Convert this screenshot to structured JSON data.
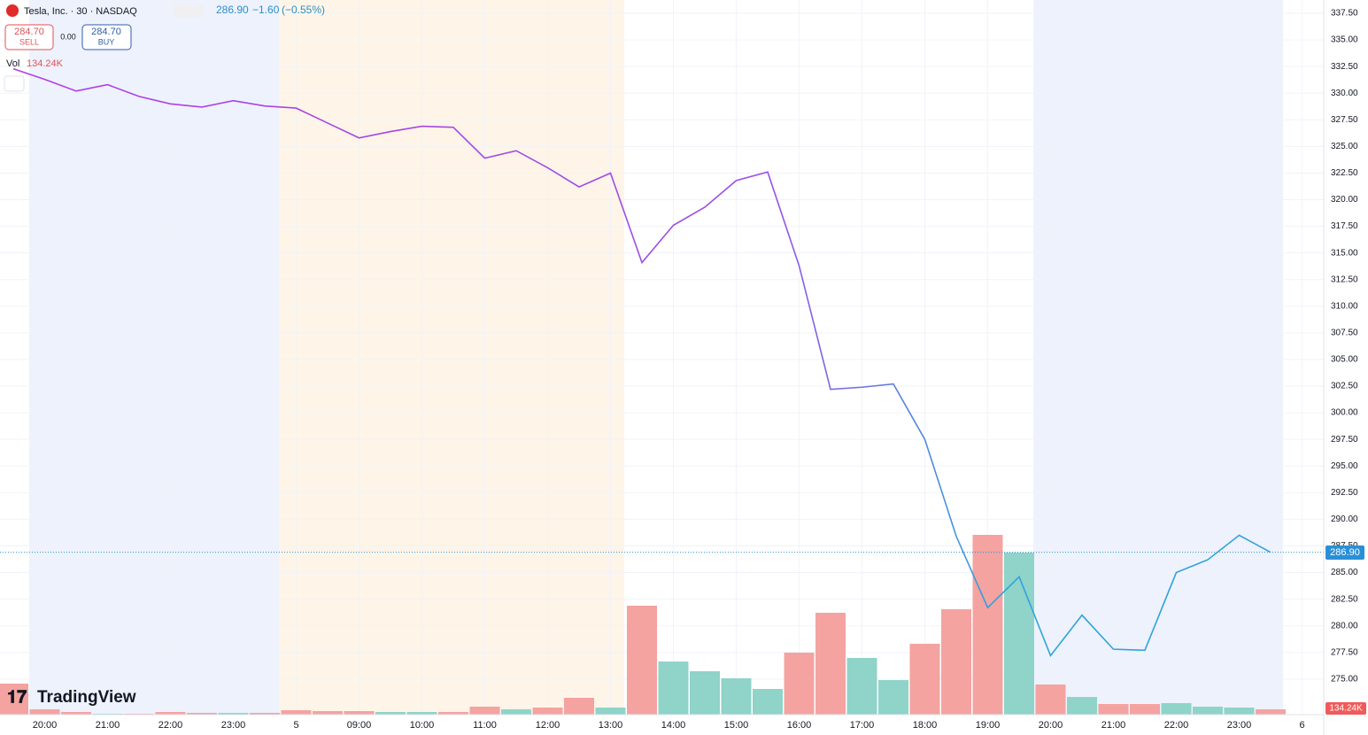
{
  "header": {
    "symbol": "Tesla, Inc. · 30 · NASDAQ",
    "last": "286.90",
    "change": "−1.60",
    "change_pct": "(−0.55%)",
    "sell_price": "284.70",
    "sell_label": "SELL",
    "spread": "0.00",
    "buy_price": "284.70",
    "buy_label": "BUY",
    "vol_label": "Vol",
    "vol_value": "134.24K",
    "brand": "TradingView"
  },
  "chart_data": {
    "type": "line",
    "categories": [
      null,
      "20:00",
      null,
      "21:00",
      null,
      "22:00",
      null,
      "23:00",
      null,
      "5",
      null,
      "09:00",
      null,
      "10:00",
      null,
      "11:00",
      null,
      "12:00",
      null,
      "13:00",
      null,
      "14:00",
      null,
      "15:00",
      null,
      "16:00",
      null,
      "17:00",
      null,
      "18:00",
      null,
      "19:00",
      null,
      "20:00",
      null,
      "21:00",
      null,
      "22:00",
      null,
      "23:00",
      null,
      "6"
    ],
    "values": [
      332.3,
      331.3,
      330.2,
      330.8,
      329.7,
      329.0,
      328.7,
      329.3,
      328.8,
      328.6,
      327.2,
      325.8,
      326.4,
      326.9,
      326.8,
      323.9,
      324.6,
      323.0,
      321.2,
      322.5,
      314.1,
      317.6,
      319.3,
      321.8,
      322.6,
      313.8,
      302.2,
      302.4,
      302.7,
      297.5,
      288.4,
      281.7,
      284.6,
      277.2,
      281.0,
      277.8,
      277.7,
      285.0,
      286.2,
      288.5,
      286.9,
      null
    ],
    "line_colors": [
      "#b23de3",
      "#9a4fe6",
      "#2fa3dc"
    ],
    "volume": [
      783000,
      134000,
      67000,
      22000,
      22000,
      67000,
      45000,
      45000,
      45000,
      112000,
      89000,
      89000,
      67000,
      67000,
      67000,
      201000,
      134000,
      179000,
      425000,
      179000,
      2752000,
      1342000,
      1096000,
      917000,
      649000,
      1566000,
      2573000,
      1432000,
      872000,
      1790000,
      2662000,
      4541000,
      4094000,
      761000,
      447000,
      268000,
      268000,
      291000,
      201000,
      179000,
      134240,
      null
    ],
    "volume_colors": [
      "#f4a3a0",
      "#f4a3a0",
      "#f4a3a0",
      "#8fd3c9",
      "#f4a3a0",
      "#f4a3a0",
      "#f4a3a0",
      "#8fd3c9",
      "#f4a3a0",
      "#f4a3a0",
      "#f4a3a0",
      "#f4a3a0",
      "#8fd3c9",
      "#8fd3c9",
      "#f4a3a0",
      "#f4a3a0",
      "#8fd3c9",
      "#f4a3a0",
      "#f4a3a0",
      "#8fd3c9",
      "#f4a3a0",
      "#8fd3c9",
      "#8fd3c9",
      "#8fd3c9",
      "#8fd3c9",
      "#f4a3a0",
      "#f4a3a0",
      "#8fd3c9",
      "#8fd3c9",
      "#f4a3a0",
      "#f4a3a0",
      "#f4a3a0",
      "#8fd3c9",
      "#f4a3a0",
      "#8fd3c9",
      "#f4a3a0",
      "#f4a3a0",
      "#8fd3c9",
      "#8fd3c9",
      "#8fd3c9",
      "#f4a3a0",
      null
    ],
    "ylim": [
      271.66,
      338.75
    ],
    "yticks": [
      {
        "value": 275,
        "label": "275.00"
      },
      {
        "value": 277.5,
        "label": "277.50"
      },
      {
        "value": 280,
        "label": "280.00"
      },
      {
        "value": 282.5,
        "label": "282.50"
      },
      {
        "value": 285,
        "label": "285.00"
      },
      {
        "value": 287.5,
        "label": "287.50"
      },
      {
        "value": 290,
        "label": "290.00"
      },
      {
        "value": 292.5,
        "label": "292.50"
      },
      {
        "value": 295,
        "label": "295.00"
      },
      {
        "value": 297.5,
        "label": "297.50"
      },
      {
        "value": 300,
        "label": "300.00"
      },
      {
        "value": 302.5,
        "label": "302.50"
      },
      {
        "value": 305,
        "label": "305.00"
      },
      {
        "value": 307.5,
        "label": "307.50"
      },
      {
        "value": 310,
        "label": "310.00"
      },
      {
        "value": 312.5,
        "label": "312.50"
      },
      {
        "value": 315,
        "label": "315.00"
      },
      {
        "value": 317.5,
        "label": "317.50"
      },
      {
        "value": 320,
        "label": "320.00"
      },
      {
        "value": 322.5,
        "label": "322.50"
      },
      {
        "value": 325,
        "label": "325.00"
      },
      {
        "value": 327.5,
        "label": "327.50"
      },
      {
        "value": 330,
        "label": "330.00"
      },
      {
        "value": 332.5,
        "label": "332.50"
      },
      {
        "value": 335,
        "label": "335.00"
      },
      {
        "value": 337.5,
        "label": "337.50"
      }
    ],
    "grid": true
  }
}
